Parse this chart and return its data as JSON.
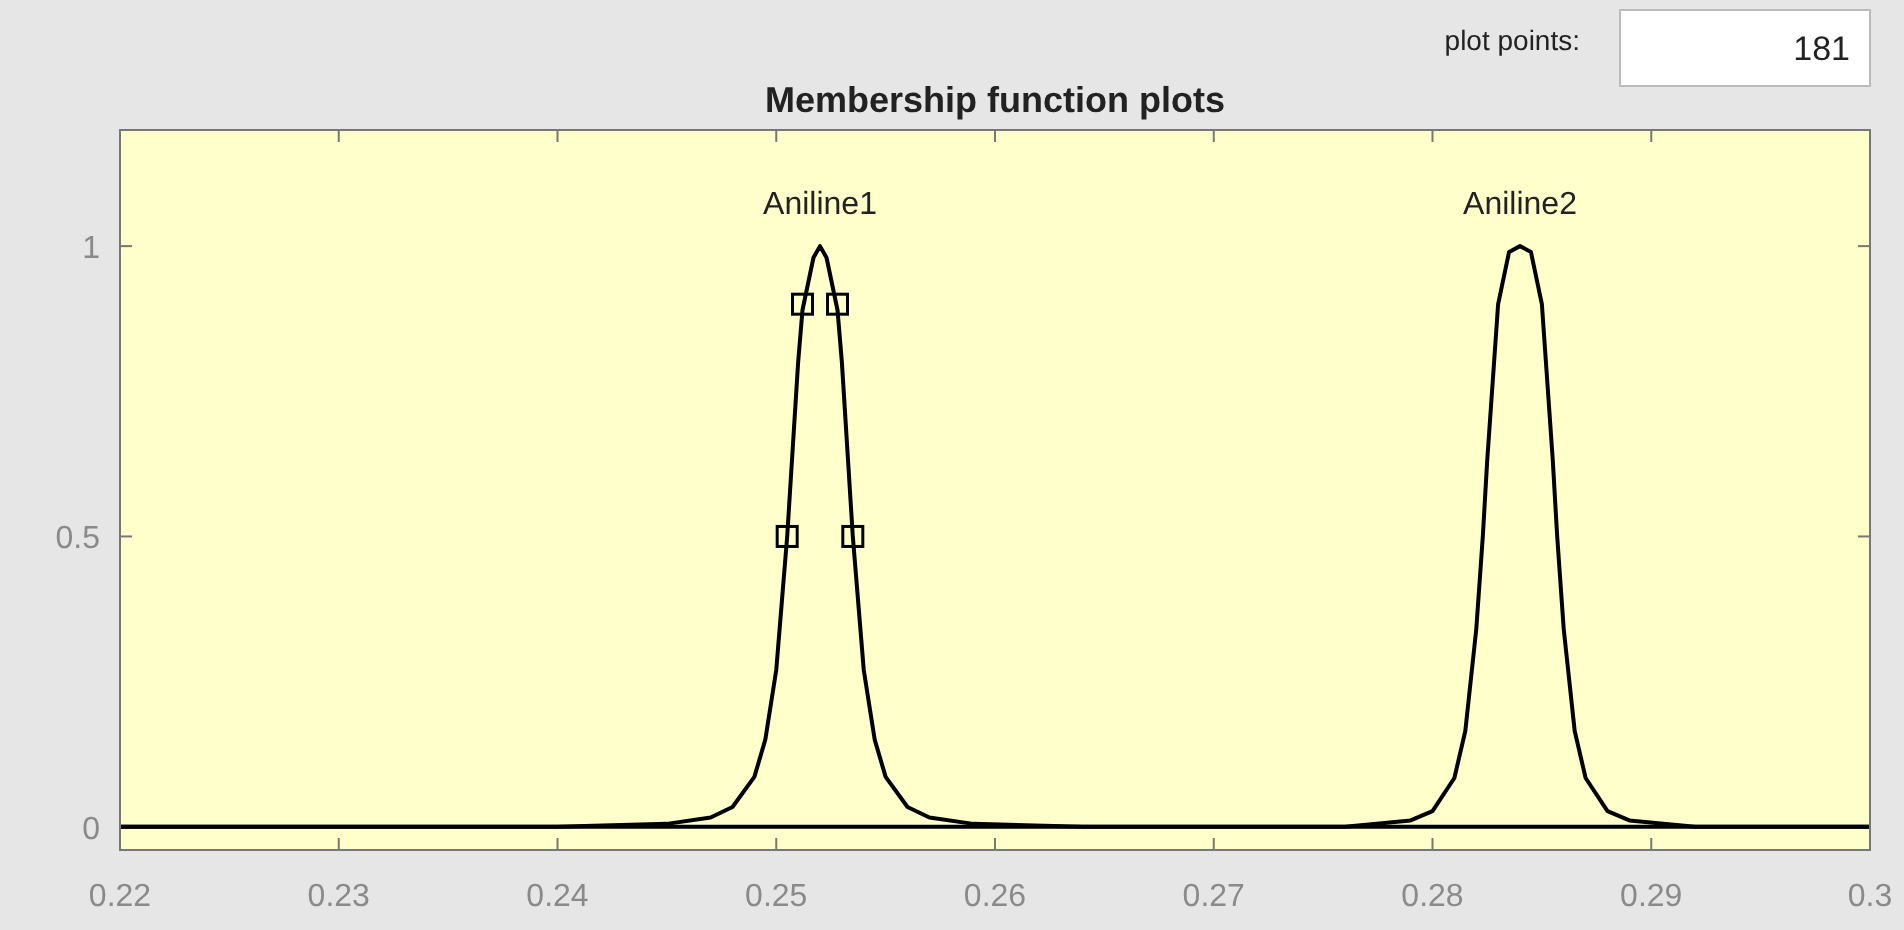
{
  "chart_data": {
    "type": "line",
    "title": "Membership function plots",
    "annotations": [
      "plot points:",
      "181"
    ],
    "xlim": [
      0.22,
      0.3
    ],
    "xticks": [
      0.22,
      0.23,
      0.24,
      0.25,
      0.26,
      0.27,
      0.28,
      0.29,
      0.3
    ],
    "ylim": [
      -0.04,
      1.2
    ],
    "yticks": [
      0,
      0.5,
      1
    ],
    "series": [
      {
        "name": "Aniline1",
        "color": "#000000",
        "x": [
          0.22,
          0.24,
          0.245,
          0.247,
          0.248,
          0.249,
          0.2495,
          0.25,
          0.2505,
          0.251,
          0.2512,
          0.2517,
          0.252,
          0.2523,
          0.2528,
          0.253,
          0.2535,
          0.254,
          0.2545,
          0.255,
          0.256,
          0.257,
          0.259,
          0.264,
          0.3
        ],
        "values": [
          0,
          0,
          0.005,
          0.016,
          0.034,
          0.086,
          0.15,
          0.27,
          0.5,
          0.8,
          0.89,
          0.98,
          1,
          0.98,
          0.89,
          0.8,
          0.5,
          0.27,
          0.15,
          0.086,
          0.034,
          0.016,
          0.005,
          0,
          0
        ]
      },
      {
        "name": "Aniline2",
        "color": "#000000",
        "x": [
          0.22,
          0.276,
          0.279,
          0.28,
          0.281,
          0.2815,
          0.282,
          0.2823,
          0.2825,
          0.283,
          0.2835,
          0.284,
          0.2845,
          0.285,
          0.2855,
          0.2857,
          0.286,
          0.2865,
          0.287,
          0.288,
          0.289,
          0.292,
          0.3
        ],
        "values": [
          0,
          0,
          0.011,
          0.027,
          0.084,
          0.165,
          0.34,
          0.5,
          0.63,
          0.9,
          0.99,
          1,
          0.99,
          0.9,
          0.63,
          0.5,
          0.34,
          0.165,
          0.084,
          0.027,
          0.011,
          0,
          0
        ]
      },
      {
        "type": "scatter",
        "marker": "square",
        "color": "#000000",
        "x": [
          0.2505,
          0.2512,
          0.2528,
          0.2535
        ],
        "values": [
          0.5,
          0.9,
          0.9,
          0.5
        ]
      }
    ]
  }
}
